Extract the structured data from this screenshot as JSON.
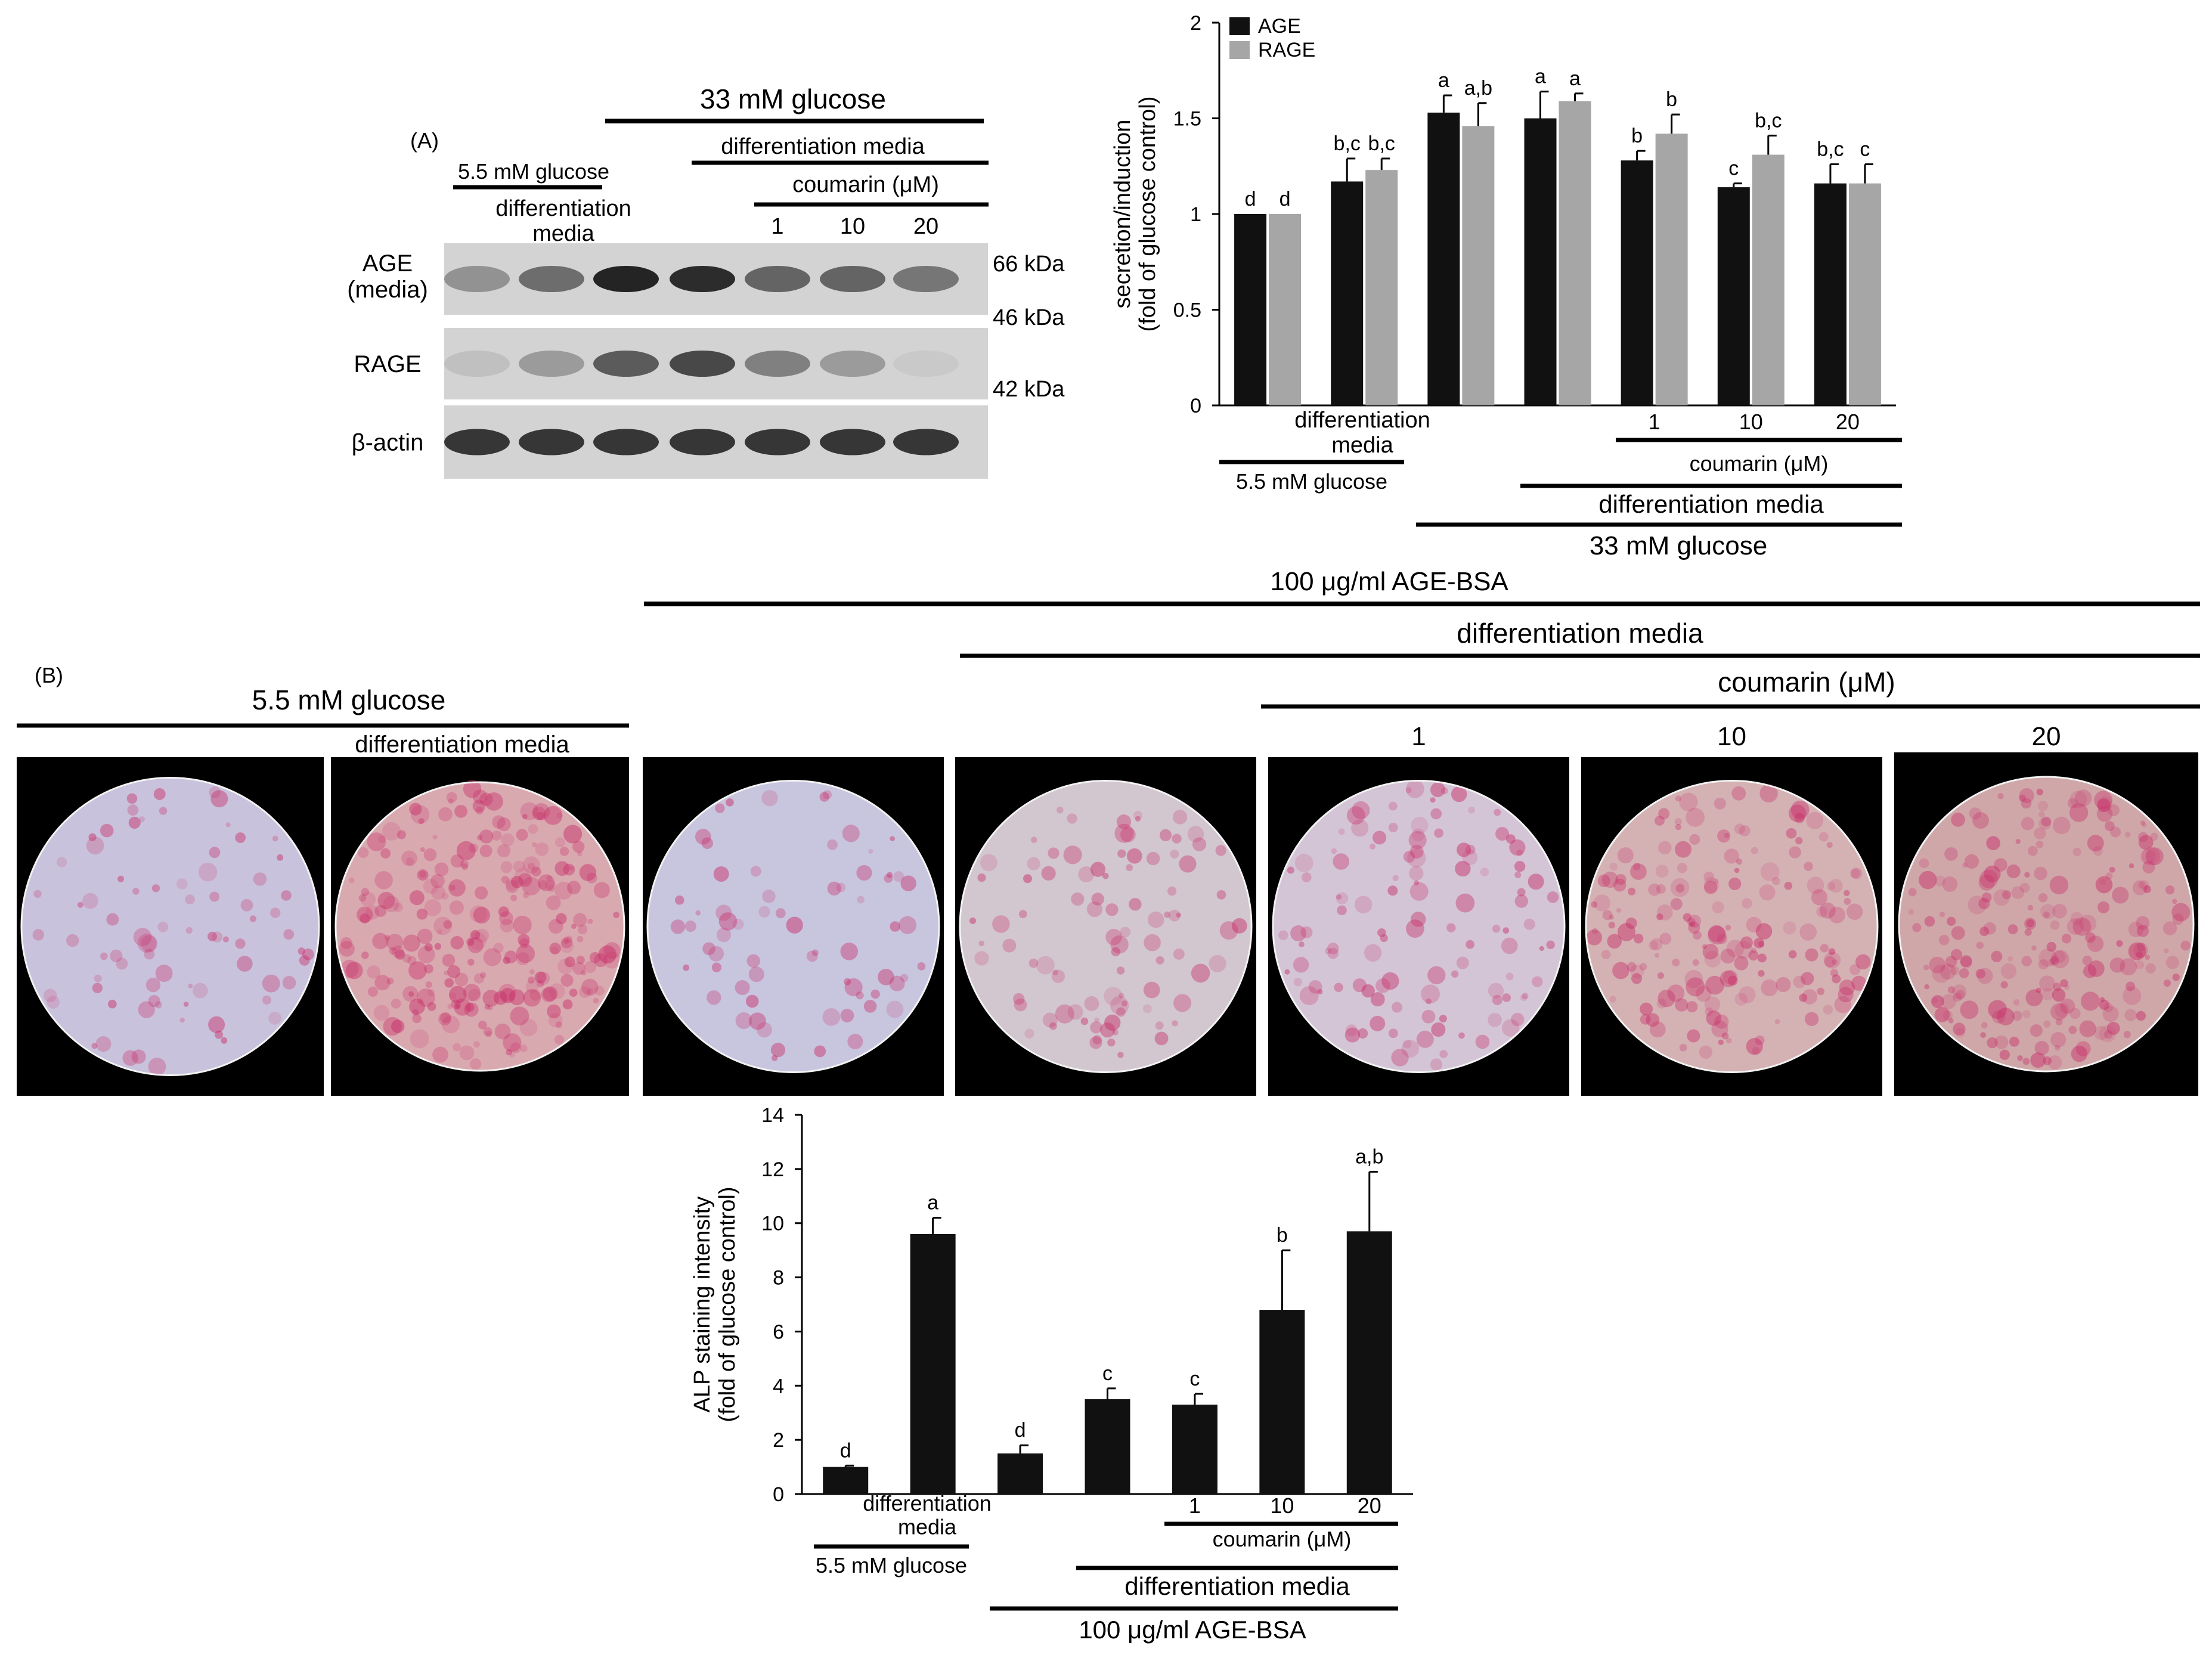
{
  "colors": {
    "age": "#111111",
    "rage": "#a6a6a6",
    "blot_bg": "#d3d3d3",
    "photo_bg": "#000000"
  },
  "panel_a": {
    "label": "(A)",
    "blot": {
      "header": {
        "low_glucose": "5.5 mM glucose",
        "high_glucose": "33 mM glucose",
        "diff_media_left": "differentiation\nmedia",
        "diff_media_right": "differentiation media",
        "coumarin": "coumarin (μM)",
        "doses": [
          "1",
          "10",
          "20"
        ]
      },
      "rows": [
        {
          "label": "AGE\n(media)",
          "markers": [
            "66 kDa",
            "46 kDa"
          ],
          "intensity": [
            0.35,
            0.55,
            0.95,
            0.9,
            0.6,
            0.6,
            0.5
          ]
        },
        {
          "label": "RAGE",
          "markers": [
            "42 kDa"
          ],
          "intensity": [
            0.1,
            0.3,
            0.65,
            0.75,
            0.45,
            0.3,
            0.05
          ]
        },
        {
          "label": "β-actin",
          "markers": [],
          "intensity": [
            0.85,
            0.85,
            0.85,
            0.85,
            0.85,
            0.85,
            0.85
          ]
        }
      ]
    }
  },
  "chart_data": [
    {
      "type": "bar",
      "ylabel": "secretion/induction\n(fold of glucose control)",
      "ylim": [
        0,
        2
      ],
      "yticks": [
        "0",
        "0.5",
        "1",
        "1.5",
        "2"
      ],
      "legend": [
        "AGE",
        "RAGE"
      ],
      "legend_position": "top-left",
      "series": [
        {
          "name": "AGE",
          "values": [
            1.0,
            1.17,
            1.53,
            1.5,
            1.28,
            1.14,
            1.16
          ],
          "errors": [
            0,
            0.12,
            0.09,
            0.14,
            0.05,
            0.02,
            0.1
          ],
          "letters": [
            "d",
            "b,c",
            "a",
            "a",
            "b",
            "c",
            "b,c"
          ]
        },
        {
          "name": "RAGE",
          "values": [
            1.0,
            1.23,
            1.46,
            1.59,
            1.42,
            1.31,
            1.16
          ],
          "errors": [
            0,
            0.06,
            0.12,
            0.04,
            0.1,
            0.1,
            0.1
          ],
          "letters": [
            "d",
            "b,c",
            "a,b",
            "a",
            "b",
            "b,c",
            "c"
          ]
        }
      ],
      "xlabels": {
        "diff_media": "differentiation\nmedia",
        "doses": [
          "1",
          "10",
          "20"
        ],
        "coumarin": "coumarin (μM)",
        "low_glucose": "5.5 mM glucose",
        "diff_media_bottom": "differentiation media",
        "high_glucose": "33 mM glucose"
      }
    },
    {
      "type": "bar",
      "ylabel": "ALP staining intensity\n(fold of glucose control)",
      "ylim": [
        0,
        14
      ],
      "yticks": [
        "0",
        "2",
        "4",
        "6",
        "8",
        "10",
        "12",
        "14"
      ],
      "series": [
        {
          "values": [
            1.0,
            9.6,
            1.5,
            3.5,
            3.3,
            6.8,
            9.7
          ],
          "errors": [
            0.05,
            0.6,
            0.3,
            0.4,
            0.4,
            2.2,
            2.2
          ],
          "letters": [
            "d",
            "a",
            "d",
            "c",
            "c",
            "b",
            "a,b"
          ]
        }
      ],
      "xlabels": {
        "diff_media": "differentiation\nmedia",
        "doses": [
          "1",
          "10",
          "20"
        ],
        "coumarin": "coumarin (μM)",
        "low_glucose": "5.5 mM glucose",
        "diff_media_bottom": "differentiation media",
        "age_bsa": "100 μg/ml AGE-BSA"
      }
    }
  ],
  "panel_b": {
    "label": "(B)",
    "header": {
      "low_glucose": "5.5 mM glucose",
      "diff_media_left": "differentiation media",
      "age_bsa": "100 μg/ml  AGE-BSA",
      "diff_media_right": "differentiation media",
      "coumarin": "coumarin (μM)",
      "doses": [
        "1",
        "10",
        "20"
      ]
    },
    "micrographs": [
      {
        "stain_level": 0.15,
        "tone": "#c9c2dc"
      },
      {
        "stain_level": 0.85,
        "tone": "#d9a9b0"
      },
      {
        "stain_level": 0.1,
        "tone": "#c8c5df"
      },
      {
        "stain_level": 0.2,
        "tone": "#d2c6cf"
      },
      {
        "stain_level": 0.3,
        "tone": "#d3c5d6"
      },
      {
        "stain_level": 0.55,
        "tone": "#d4b2b4"
      },
      {
        "stain_level": 0.7,
        "tone": "#cfa7a9"
      }
    ]
  }
}
